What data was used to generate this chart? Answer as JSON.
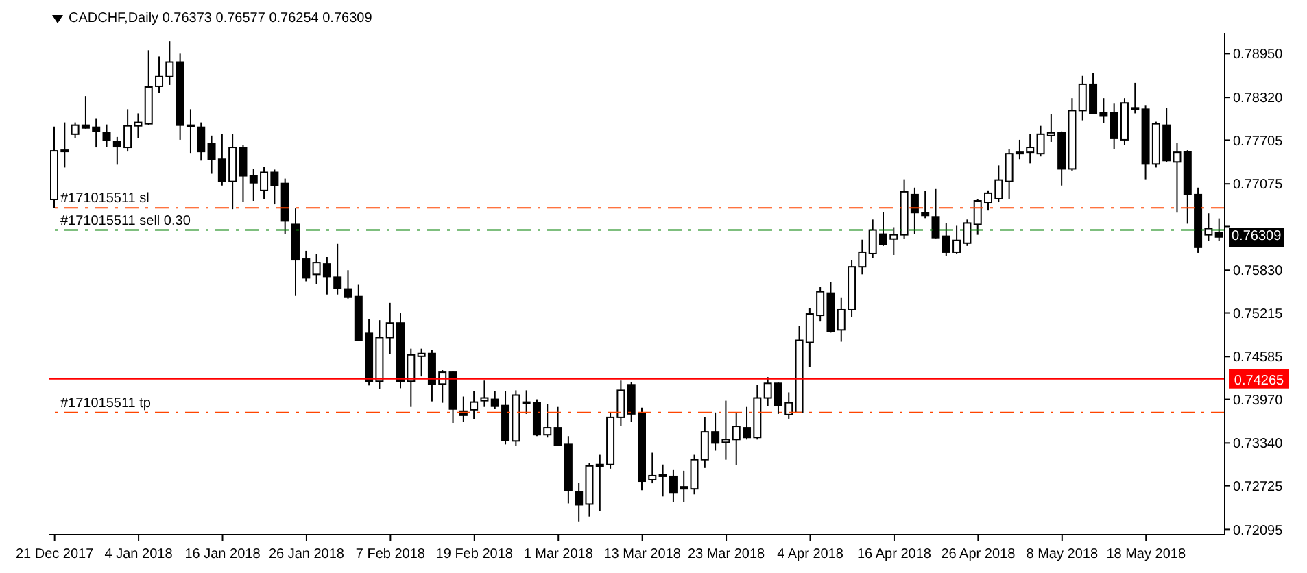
{
  "chart_data": {
    "type": "candlestick",
    "title": "CADCHF,Daily  0.76373 0.76577 0.76254 0.76309",
    "color": "#000000",
    "categories": [
      "21 Dec 2017",
      null,
      null,
      null,
      null,
      null,
      null,
      null,
      "4 Jan 2018",
      null,
      null,
      null,
      null,
      null,
      null,
      null,
      "16 Jan 2018",
      null,
      null,
      null,
      null,
      null,
      null,
      null,
      "26 Jan 2018",
      null,
      null,
      null,
      null,
      null,
      null,
      null,
      "7 Feb 2018",
      null,
      null,
      null,
      null,
      null,
      null,
      null,
      "19 Feb 2018",
      null,
      null,
      null,
      null,
      null,
      null,
      null,
      "1 Mar 2018",
      null,
      null,
      null,
      null,
      null,
      null,
      null,
      "13 Mar 2018",
      null,
      null,
      null,
      null,
      null,
      null,
      null,
      "23 Mar 2018",
      null,
      null,
      null,
      null,
      null,
      null,
      null,
      "4 Apr 2018",
      null,
      null,
      null,
      null,
      null,
      null,
      null,
      "16 Apr 2018",
      null,
      null,
      null,
      null,
      null,
      null,
      null,
      "26 Apr 2018",
      null,
      null,
      null,
      null,
      null,
      null,
      null,
      "8 May 2018",
      null,
      null,
      null,
      null,
      null,
      null,
      null,
      "18 May 2018",
      null,
      null,
      null,
      null,
      null,
      null,
      null
    ],
    "ohlc": [
      [
        0.7685,
        0.779,
        0.7673,
        0.7755
      ],
      [
        0.7756,
        0.7796,
        0.7731,
        0.7755
      ],
      [
        0.7779,
        0.7796,
        0.7773,
        0.7792
      ],
      [
        0.7792,
        0.7834,
        0.7787,
        0.7788
      ],
      [
        0.7789,
        0.7802,
        0.776,
        0.7783
      ],
      [
        0.7781,
        0.7793,
        0.7761,
        0.777
      ],
      [
        0.7768,
        0.7775,
        0.7735,
        0.7761
      ],
      [
        0.776,
        0.7815,
        0.7754,
        0.7791
      ],
      [
        0.7791,
        0.7809,
        0.7773,
        0.7796
      ],
      [
        0.7794,
        0.79,
        0.7792,
        0.7847
      ],
      [
        0.7848,
        0.7891,
        0.7839,
        0.7862
      ],
      [
        0.7862,
        0.7913,
        0.785,
        0.7883
      ],
      [
        0.7883,
        0.7895,
        0.7771,
        0.7792
      ],
      [
        0.7792,
        0.7815,
        0.7752,
        0.779
      ],
      [
        0.7789,
        0.7796,
        0.7741,
        0.7754
      ],
      [
        0.7765,
        0.7777,
        0.7722,
        0.7743
      ],
      [
        0.7743,
        0.7779,
        0.7705,
        0.7711
      ],
      [
        0.7711,
        0.7779,
        0.7671,
        0.776
      ],
      [
        0.776,
        0.7763,
        0.7681,
        0.7719
      ],
      [
        0.7719,
        0.7729,
        0.7683,
        0.7709
      ],
      [
        0.7698,
        0.7732,
        0.7686,
        0.7724
      ],
      [
        0.7724,
        0.7728,
        0.7678,
        0.7705
      ],
      [
        0.7708,
        0.7715,
        0.7635,
        0.7654
      ],
      [
        0.7649,
        0.7672,
        0.7546,
        0.7598
      ],
      [
        0.7599,
        0.7611,
        0.7567,
        0.7572
      ],
      [
        0.7577,
        0.7606,
        0.7563,
        0.7594
      ],
      [
        0.7592,
        0.7602,
        0.7548,
        0.7574
      ],
      [
        0.7573,
        0.7621,
        0.7548,
        0.7557
      ],
      [
        0.7556,
        0.7583,
        0.7542,
        0.7544
      ],
      [
        0.7545,
        0.7562,
        0.7481,
        0.7482
      ],
      [
        0.7492,
        0.7513,
        0.7417,
        0.7423
      ],
      [
        0.7423,
        0.7511,
        0.7412,
        0.7486
      ],
      [
        0.7486,
        0.7536,
        0.7462,
        0.7507
      ],
      [
        0.7507,
        0.7521,
        0.7413,
        0.7423
      ],
      [
        0.7423,
        0.747,
        0.7386,
        0.7461
      ],
      [
        0.7459,
        0.747,
        0.743,
        0.7463
      ],
      [
        0.7463,
        0.7468,
        0.7394,
        0.7419
      ],
      [
        0.7419,
        0.7439,
        0.7392,
        0.7436
      ],
      [
        0.7436,
        0.7438,
        0.7363,
        0.7383
      ],
      [
        0.738,
        0.7401,
        0.7364,
        0.7374
      ],
      [
        0.7382,
        0.7409,
        0.7368,
        0.7393
      ],
      [
        0.7395,
        0.7424,
        0.7386,
        0.7399
      ],
      [
        0.7397,
        0.7409,
        0.7383,
        0.7387
      ],
      [
        0.7388,
        0.7409,
        0.7332,
        0.7338
      ],
      [
        0.7337,
        0.741,
        0.733,
        0.7403
      ],
      [
        0.7393,
        0.741,
        0.7376,
        0.7391
      ],
      [
        0.7392,
        0.7397,
        0.7344,
        0.7346
      ],
      [
        0.7346,
        0.739,
        0.7342,
        0.7356
      ],
      [
        0.7356,
        0.7386,
        0.733,
        0.7331
      ],
      [
        0.7332,
        0.7344,
        0.7247,
        0.7266
      ],
      [
        0.7264,
        0.7277,
        0.7221,
        0.7245
      ],
      [
        0.7246,
        0.7305,
        0.7228,
        0.7301
      ],
      [
        0.7303,
        0.7317,
        0.7236,
        0.73
      ],
      [
        0.7303,
        0.7378,
        0.7297,
        0.7371
      ],
      [
        0.7371,
        0.7424,
        0.7359,
        0.741
      ],
      [
        0.7418,
        0.7422,
        0.7364,
        0.7376
      ],
      [
        0.7377,
        0.7385,
        0.7266,
        0.7279
      ],
      [
        0.7281,
        0.732,
        0.7276,
        0.7287
      ],
      [
        0.7288,
        0.7303,
        0.7257,
        0.7286
      ],
      [
        0.7286,
        0.7296,
        0.7249,
        0.7262
      ],
      [
        0.7271,
        0.7294,
        0.7249,
        0.7268
      ],
      [
        0.7268,
        0.7317,
        0.726,
        0.731
      ],
      [
        0.731,
        0.7371,
        0.7298,
        0.735
      ],
      [
        0.735,
        0.7378,
        0.7323,
        0.7334
      ],
      [
        0.7335,
        0.7395,
        0.731,
        0.7339
      ],
      [
        0.7339,
        0.7378,
        0.7302,
        0.7358
      ],
      [
        0.7356,
        0.7386,
        0.7339,
        0.7342
      ],
      [
        0.7342,
        0.7418,
        0.7339,
        0.7399
      ],
      [
        0.7399,
        0.7429,
        0.7387,
        0.742
      ],
      [
        0.742,
        0.7421,
        0.7376,
        0.7388
      ],
      [
        0.7375,
        0.7407,
        0.7369,
        0.7392
      ],
      [
        0.7378,
        0.7503,
        0.7377,
        0.7482
      ],
      [
        0.7479,
        0.7528,
        0.7443,
        0.752
      ],
      [
        0.7518,
        0.7559,
        0.7509,
        0.7552
      ],
      [
        0.755,
        0.7566,
        0.7493,
        0.7495
      ],
      [
        0.7497,
        0.7543,
        0.748,
        0.7526
      ],
      [
        0.7526,
        0.7598,
        0.7516,
        0.7588
      ],
      [
        0.7588,
        0.7627,
        0.7577,
        0.7609
      ],
      [
        0.7607,
        0.7656,
        0.7601,
        0.7641
      ],
      [
        0.7635,
        0.7667,
        0.7618,
        0.762
      ],
      [
        0.7628,
        0.7645,
        0.7605,
        0.7634
      ],
      [
        0.7634,
        0.7714,
        0.7628,
        0.7696
      ],
      [
        0.7692,
        0.7702,
        0.7635,
        0.7666
      ],
      [
        0.7666,
        0.7697,
        0.7658,
        0.7662
      ],
      [
        0.766,
        0.77,
        0.7629,
        0.763
      ],
      [
        0.7632,
        0.7651,
        0.7603,
        0.7609
      ],
      [
        0.7609,
        0.7647,
        0.7607,
        0.7626
      ],
      [
        0.7622,
        0.7656,
        0.7618,
        0.7651
      ],
      [
        0.7649,
        0.7685,
        0.7634,
        0.7683
      ],
      [
        0.7681,
        0.7698,
        0.7669,
        0.7694
      ],
      [
        0.7686,
        0.7734,
        0.7681,
        0.7713
      ],
      [
        0.7711,
        0.7758,
        0.7686,
        0.7751
      ],
      [
        0.7753,
        0.7771,
        0.7743,
        0.7751
      ],
      [
        0.7753,
        0.7779,
        0.7737,
        0.776
      ],
      [
        0.7751,
        0.7791,
        0.7747,
        0.7779
      ],
      [
        0.7777,
        0.7808,
        0.7768,
        0.7781
      ],
      [
        0.7781,
        0.7783,
        0.7705,
        0.7729
      ],
      [
        0.7729,
        0.7831,
        0.7726,
        0.7813
      ],
      [
        0.7813,
        0.7863,
        0.7799,
        0.7851
      ],
      [
        0.7851,
        0.7867,
        0.7808,
        0.7809
      ],
      [
        0.781,
        0.7831,
        0.7795,
        0.7806
      ],
      [
        0.781,
        0.7823,
        0.7758,
        0.7773
      ],
      [
        0.7771,
        0.7831,
        0.7763,
        0.7824
      ],
      [
        0.7817,
        0.7853,
        0.7809,
        0.7815
      ],
      [
        0.7815,
        0.7821,
        0.7714,
        0.7736
      ],
      [
        0.7736,
        0.7797,
        0.7731,
        0.7794
      ],
      [
        0.7792,
        0.7817,
        0.7739,
        0.7741
      ],
      [
        0.7739,
        0.7766,
        0.7666,
        0.7753
      ],
      [
        0.7754,
        0.7756,
        0.765,
        0.7692
      ],
      [
        0.7692,
        0.7702,
        0.7608,
        0.7616
      ],
      [
        0.7634,
        0.7665,
        0.7625,
        0.7643
      ],
      [
        0.76373,
        0.76577,
        0.76254,
        0.76309
      ]
    ],
    "ylim": [
      0.7202,
      0.7925
    ],
    "yticks": [
      {
        "value": 0.7895,
        "label": "0.78950"
      },
      {
        "value": 0.7832,
        "label": "0.78320"
      },
      {
        "value": 0.77705,
        "label": "0.77705"
      },
      {
        "value": 0.77075,
        "label": "0.77075"
      },
      {
        "value": 0.7646,
        "label": null
      },
      {
        "value": 0.7583,
        "label": "0.75830"
      },
      {
        "value": 0.75215,
        "label": "0.75215"
      },
      {
        "value": 0.74585,
        "label": "0.74585"
      },
      {
        "value": 0.7397,
        "label": "0.73970"
      },
      {
        "value": 0.7334,
        "label": "0.73340"
      },
      {
        "value": 0.72725,
        "label": "0.72725"
      },
      {
        "value": 0.72095,
        "label": "0.72095"
      }
    ],
    "ref_lines": [
      {
        "axis": "y",
        "value": 0.7673,
        "label": "#171015511 sl",
        "color": "#ff4500",
        "line_style": "dashed"
      },
      {
        "axis": "y",
        "value": 0.7641,
        "label": "#171015511 sell 0.30",
        "color": "#008000",
        "line_style": "dashed"
      },
      {
        "axis": "y",
        "value": 0.7378,
        "label": "#171015511 tp",
        "color": "#ff4500",
        "line_style": "dashed"
      },
      {
        "axis": "y",
        "value": 0.74265,
        "label": "0.74265",
        "color": "#ff0000",
        "line_style": "solid"
      }
    ],
    "annotations": [
      {
        "text": "0.76309",
        "y": 0.76309
      }
    ]
  }
}
